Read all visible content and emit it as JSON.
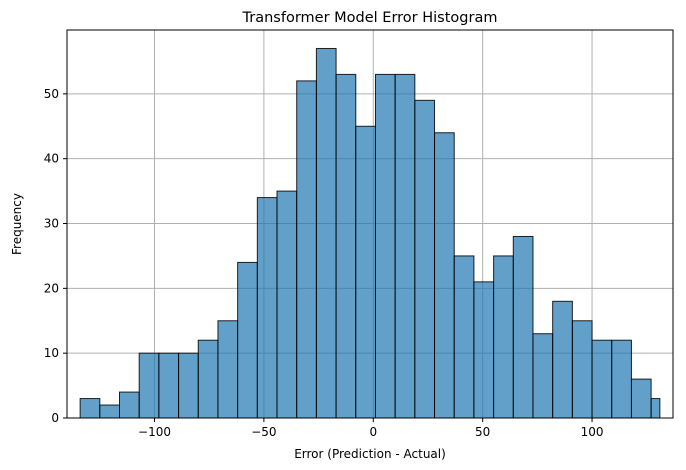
{
  "chart_data": {
    "type": "bar",
    "title": "Transformer Model Error Histogram",
    "xlabel": "Error (Prediction - Actual)",
    "ylabel": "Frequency",
    "bin_edges": [
      -134,
      -125,
      -116,
      -107,
      -98,
      -89,
      -80,
      -71,
      -62,
      -53,
      -44,
      -35,
      -26,
      -17,
      -8,
      1,
      10,
      19,
      28,
      37,
      46,
      55,
      64,
      73,
      82,
      91,
      100,
      109,
      118,
      127,
      131
    ],
    "counts": [
      3,
      2,
      4,
      10,
      10,
      10,
      12,
      15,
      24,
      34,
      35,
      52,
      57,
      53,
      45,
      53,
      53,
      49,
      44,
      25,
      21,
      25,
      28,
      13,
      18,
      15,
      12,
      12,
      6,
      3
    ],
    "xlim": [
      -140,
      137
    ],
    "ylim": [
      0,
      59.85
    ],
    "xticks": [
      -100,
      -50,
      0,
      50,
      100
    ],
    "yticks": [
      0,
      10,
      20,
      30,
      40,
      50
    ],
    "grid": true,
    "colors": {
      "bar_fill": "#1f77b4",
      "bar_opacity": 0.7,
      "bar_edge": "#000000",
      "grid": "#b0b0b0"
    }
  }
}
